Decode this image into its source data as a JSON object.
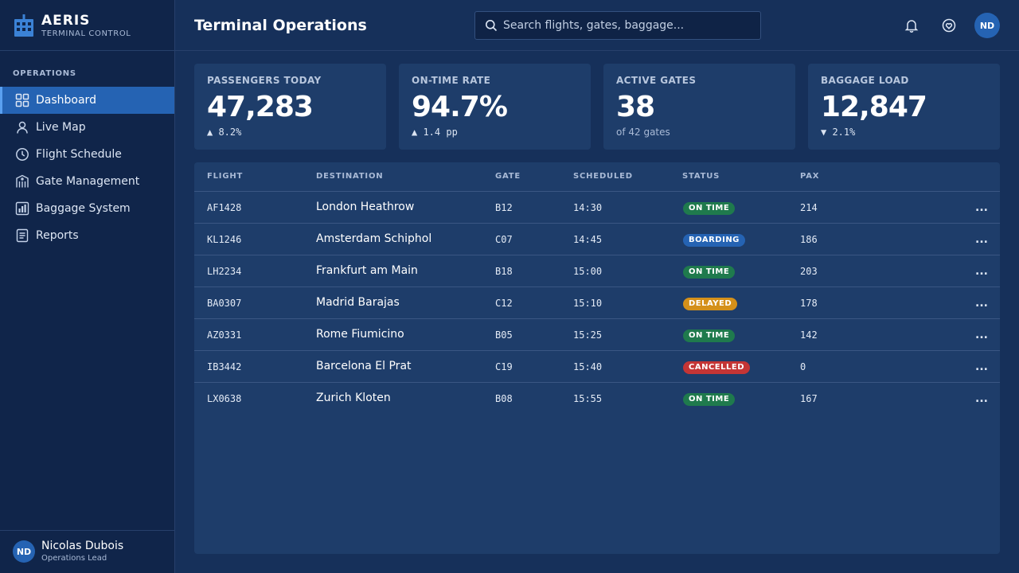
{
  "app": {
    "name": "AERIS",
    "subtitle": "TERMINAL CONTROL"
  },
  "sidebar": {
    "section_label": "OPERATIONS",
    "items": [
      {
        "label": "Dashboard",
        "icon": "grid-icon",
        "active": true
      },
      {
        "label": "Live Map",
        "icon": "map-pin-icon",
        "active": false
      },
      {
        "label": "Flight Schedule",
        "icon": "clock-icon",
        "active": false
      },
      {
        "label": "Gate Management",
        "icon": "gate-icon",
        "active": false
      },
      {
        "label": "Baggage System",
        "icon": "bar-chart-icon",
        "active": false
      },
      {
        "label": "Reports",
        "icon": "document-icon",
        "active": false
      }
    ],
    "user": {
      "initials": "ND",
      "name": "Nicolas Dubois",
      "role": "Operations Lead"
    }
  },
  "header": {
    "title": "Terminal Operations",
    "search_placeholder": "Search flights, gates, baggage...",
    "avatar_initials": "ND"
  },
  "stats": [
    {
      "label": "PASSENGERS TODAY",
      "value": "47,283",
      "delta": "▲ 8.2%"
    },
    {
      "label": "ON-TIME RATE",
      "value": "94.7%",
      "delta": "▲ 1.4 pp"
    },
    {
      "label": "ACTIVE GATES",
      "value": "38",
      "sub": "of 42 gates"
    },
    {
      "label": "BAGGAGE LOAD",
      "value": "12,847",
      "delta": "▼ 2.1%"
    }
  ],
  "table": {
    "columns": [
      "FLIGHT",
      "DESTINATION",
      "GATE",
      "SCHEDULED",
      "STATUS",
      "PAX"
    ],
    "more_label": "...",
    "status_colors": {
      "ON TIME": "#1f7a4d",
      "BOARDING": "#2563b3",
      "DELAYED": "#d4901a",
      "CANCELLED": "#c43535"
    },
    "rows": [
      {
        "flight": "AF1428",
        "destination": "London Heathrow",
        "gate": "B12",
        "scheduled": "14:30",
        "status": "ON TIME",
        "pax": "214"
      },
      {
        "flight": "KL1246",
        "destination": "Amsterdam Schiphol",
        "gate": "C07",
        "scheduled": "14:45",
        "status": "BOARDING",
        "pax": "186"
      },
      {
        "flight": "LH2234",
        "destination": "Frankfurt am Main",
        "gate": "B18",
        "scheduled": "15:00",
        "status": "ON TIME",
        "pax": "203"
      },
      {
        "flight": "BA0307",
        "destination": "Madrid Barajas",
        "gate": "C12",
        "scheduled": "15:10",
        "status": "DELAYED",
        "pax": "178"
      },
      {
        "flight": "AZ0331",
        "destination": "Rome Fiumicino",
        "gate": "B05",
        "scheduled": "15:25",
        "status": "ON TIME",
        "pax": "142"
      },
      {
        "flight": "IB3442",
        "destination": "Barcelona El Prat",
        "gate": "C19",
        "scheduled": "15:40",
        "status": "CANCELLED",
        "pax": "0"
      },
      {
        "flight": "LX0638",
        "destination": "Zurich Kloten",
        "gate": "B08",
        "scheduled": "15:55",
        "status": "ON TIME",
        "pax": "167"
      }
    ]
  }
}
